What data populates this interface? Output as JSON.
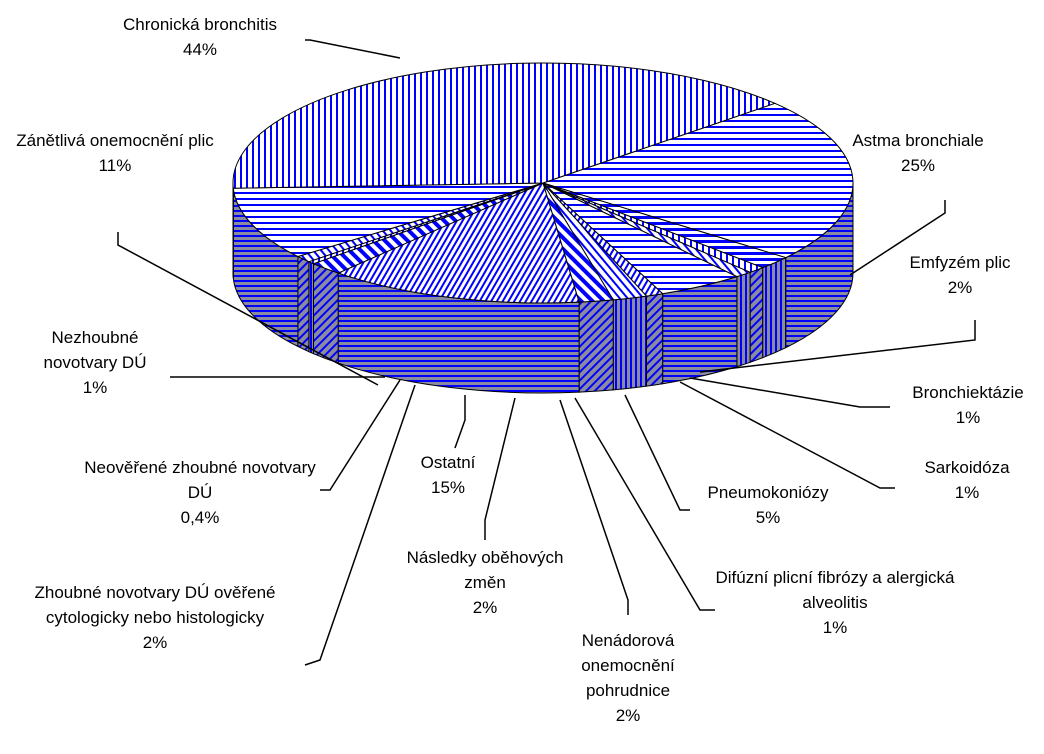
{
  "chart_data": {
    "type": "pie3d",
    "categories": [
      "Astma bronchiale",
      "Emfyzém plic",
      "Bronchiektázie",
      "Sarkoidóza",
      "Pneumokoniózy",
      "Difúzní plicní fibrózy a alergická alveolitis",
      "Nenádorová onemocnění pohrudnice",
      "Následky oběhových změn",
      "Ostatní",
      "Zhoubné novotvary DÚ ověřené cytologicky nebo histologicky",
      "Neověřené zhoubné novotvary DÚ",
      "Nezhoubné novotvary DÚ",
      "Zánětlivá onemocnění plic",
      "Chronická bronchitis"
    ],
    "values": [
      25,
      2,
      1,
      1,
      5,
      1,
      2,
      2,
      15,
      2,
      0.4,
      1,
      11,
      44
    ],
    "value_labels": [
      "25%",
      "2%",
      "1%",
      "1%",
      "5%",
      "1%",
      "2%",
      "2%",
      "15%",
      "2%",
      "0,4%",
      "1%",
      "11%",
      "44%"
    ],
    "color": "#0000ff"
  }
}
